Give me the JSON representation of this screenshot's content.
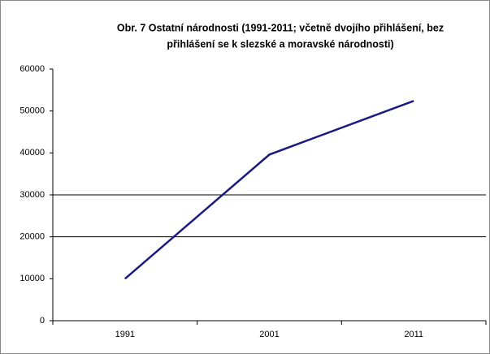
{
  "chart_data": {
    "type": "line",
    "title": [
      "Obr. 7 Ostatní národnosti (1991-2011;  včetně dvojího přihlášení, bez",
      "přihlášení se k slezské  a moravské národnosti)"
    ],
    "categories": [
      "1991",
      "2001",
      "2011"
    ],
    "values": [
      10000,
      39600,
      52400
    ],
    "color": "#1a1a80",
    "ylim": [
      0,
      60000
    ],
    "yticks": [
      0,
      10000,
      20000,
      30000,
      40000,
      50000,
      60000
    ],
    "grid_lines": [
      20000,
      30000
    ]
  }
}
